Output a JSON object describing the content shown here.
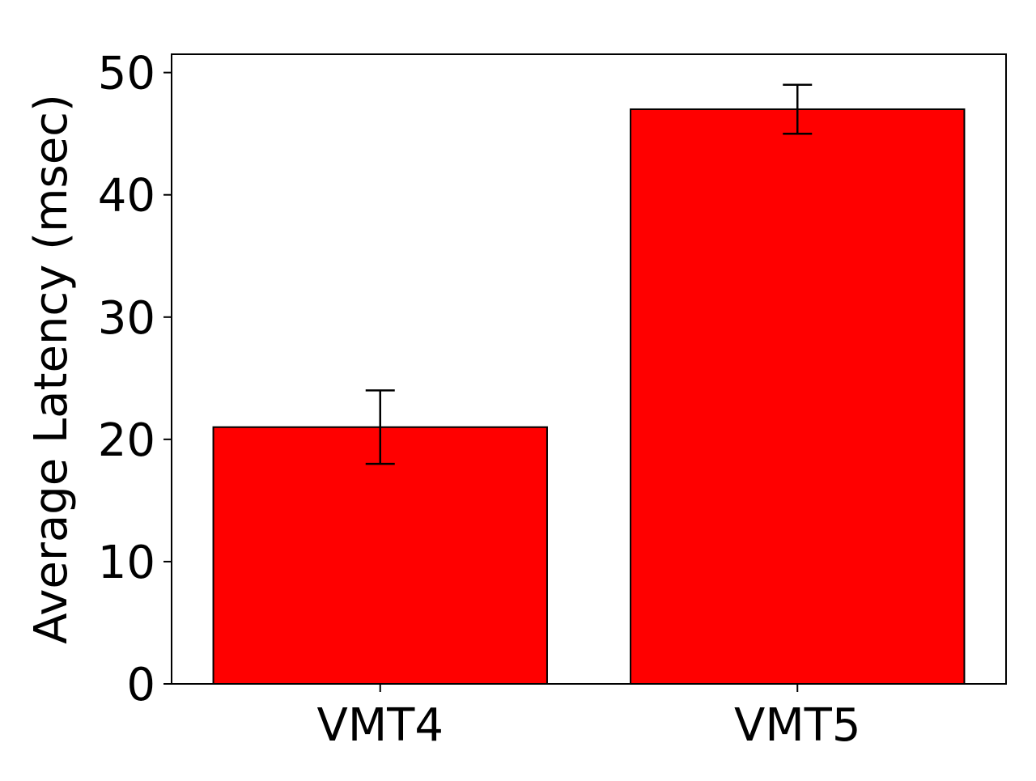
{
  "chart_data": {
    "type": "bar",
    "categories": [
      "VMT4",
      "VMT5"
    ],
    "values": [
      21,
      47
    ],
    "errors": [
      3,
      2
    ],
    "title": "",
    "xlabel": "",
    "ylabel": "Average Latency (msec)",
    "ylim": [
      0,
      51.5
    ],
    "yticks": [
      0,
      10,
      20,
      30,
      40,
      50
    ],
    "grid": false,
    "legend": "none",
    "bar_color": "#ff0000",
    "edge_color": "#000000"
  }
}
